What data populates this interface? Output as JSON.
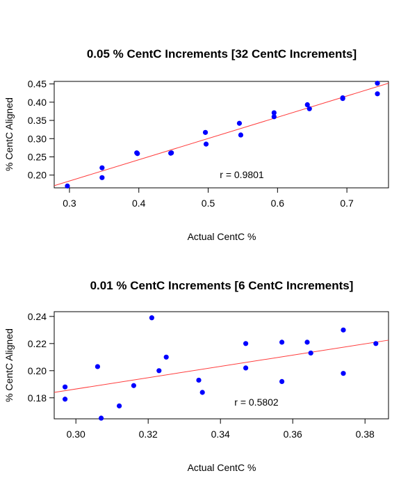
{
  "chart_data": [
    {
      "type": "scatter",
      "title": "0.05 % CentC Increments [32 CentC Increments]",
      "xlabel": "Actual CentC %",
      "ylabel": "% CentC Aligned",
      "xlim": [
        0.278,
        0.76
      ],
      "ylim": [
        0.165,
        0.457
      ],
      "xticks": [
        0.3,
        0.4,
        0.5,
        0.6,
        0.7
      ],
      "xtick_labels": [
        "0.3",
        "0.4",
        "0.5",
        "0.6",
        "0.7"
      ],
      "yticks": [
        0.2,
        0.25,
        0.3,
        0.35,
        0.4,
        0.45
      ],
      "ytick_labels": [
        "0.20",
        "0.25",
        "0.30",
        "0.35",
        "0.40",
        "0.45"
      ],
      "grid": false,
      "points_color": "#0000ff",
      "fit_color": "#ff3b3b",
      "annotation": "r = 0.9801",
      "points": [
        {
          "x": 0.297,
          "y": 0.17
        },
        {
          "x": 0.347,
          "y": 0.22
        },
        {
          "x": 0.347,
          "y": 0.193
        },
        {
          "x": 0.397,
          "y": 0.261
        },
        {
          "x": 0.398,
          "y": 0.259
        },
        {
          "x": 0.446,
          "y": 0.26
        },
        {
          "x": 0.447,
          "y": 0.261
        },
        {
          "x": 0.496,
          "y": 0.317
        },
        {
          "x": 0.497,
          "y": 0.285
        },
        {
          "x": 0.545,
          "y": 0.342
        },
        {
          "x": 0.547,
          "y": 0.31
        },
        {
          "x": 0.595,
          "y": 0.371
        },
        {
          "x": 0.595,
          "y": 0.36
        },
        {
          "x": 0.643,
          "y": 0.393
        },
        {
          "x": 0.646,
          "y": 0.382
        },
        {
          "x": 0.694,
          "y": 0.412
        },
        {
          "x": 0.694,
          "y": 0.41
        },
        {
          "x": 0.744,
          "y": 0.452
        },
        {
          "x": 0.744,
          "y": 0.423
        }
      ],
      "fit_line": {
        "x": [
          0.278,
          0.76
        ],
        "y": [
          0.171,
          0.452
        ]
      }
    },
    {
      "type": "scatter",
      "title": "0.01 % CentC Increments [6 CentC Increments]",
      "xlabel": "Actual CentC %",
      "ylabel": "% CentC Aligned",
      "xlim": [
        0.294,
        0.3865
      ],
      "ylim": [
        0.1645,
        0.2435
      ],
      "xticks": [
        0.3,
        0.32,
        0.34,
        0.36,
        0.38
      ],
      "xtick_labels": [
        "0.30",
        "0.32",
        "0.34",
        "0.36",
        "0.38"
      ],
      "yticks": [
        0.18,
        0.2,
        0.22,
        0.24
      ],
      "ytick_labels": [
        "0.18",
        "0.20",
        "0.22",
        "0.24"
      ],
      "grid": false,
      "points_color": "#0000ff",
      "fit_color": "#ff3b3b",
      "annotation": "r = 0.5802",
      "points": [
        {
          "x": 0.297,
          "y": 0.188
        },
        {
          "x": 0.297,
          "y": 0.179
        },
        {
          "x": 0.306,
          "y": 0.203
        },
        {
          "x": 0.307,
          "y": 0.165
        },
        {
          "x": 0.312,
          "y": 0.174
        },
        {
          "x": 0.316,
          "y": 0.189
        },
        {
          "x": 0.321,
          "y": 0.239
        },
        {
          "x": 0.323,
          "y": 0.2
        },
        {
          "x": 0.325,
          "y": 0.21
        },
        {
          "x": 0.334,
          "y": 0.193
        },
        {
          "x": 0.335,
          "y": 0.184
        },
        {
          "x": 0.347,
          "y": 0.22
        },
        {
          "x": 0.347,
          "y": 0.202
        },
        {
          "x": 0.357,
          "y": 0.192
        },
        {
          "x": 0.357,
          "y": 0.221
        },
        {
          "x": 0.364,
          "y": 0.221
        },
        {
          "x": 0.365,
          "y": 0.213
        },
        {
          "x": 0.374,
          "y": 0.23
        },
        {
          "x": 0.374,
          "y": 0.198
        },
        {
          "x": 0.383,
          "y": 0.22
        }
      ],
      "fit_line": {
        "x": [
          0.294,
          0.3865
        ],
        "y": [
          0.184,
          0.2225
        ]
      }
    }
  ]
}
